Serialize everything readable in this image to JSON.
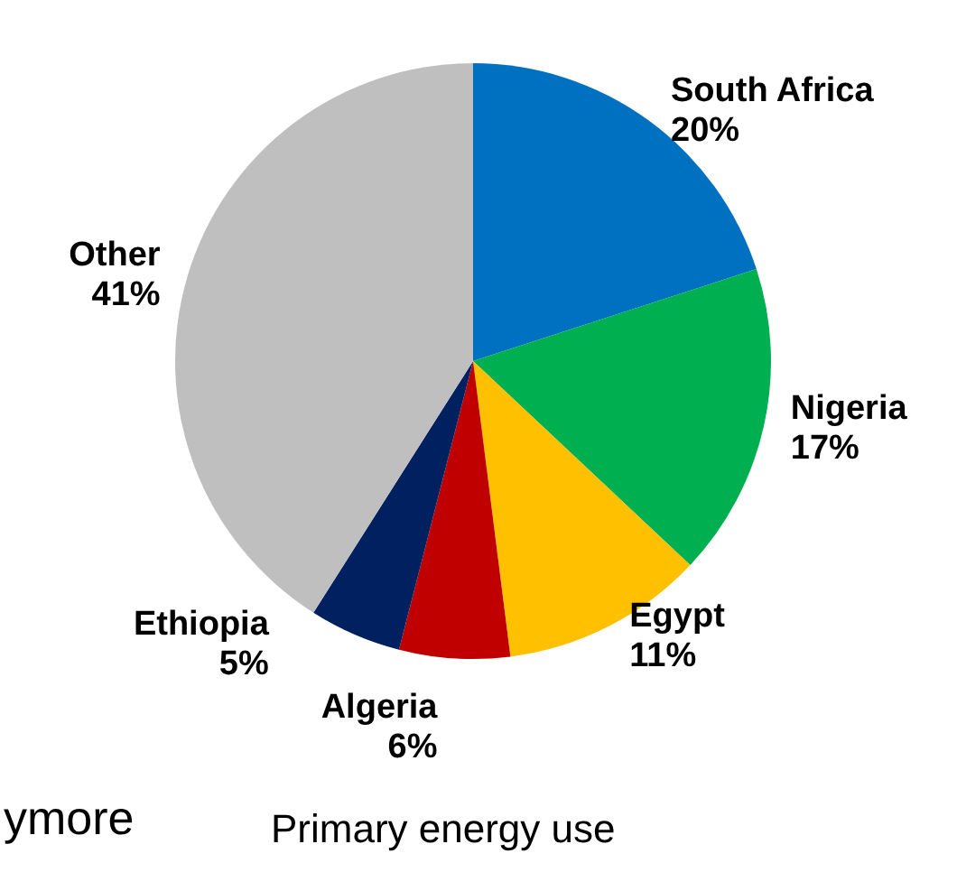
{
  "chart_data": {
    "type": "pie",
    "categories": [
      "South Africa",
      "Nigeria",
      "Egypt",
      "Algeria",
      "Ethiopia",
      "Other"
    ],
    "values": [
      20,
      17,
      11,
      6,
      5,
      41
    ],
    "value_labels": [
      "20%",
      "17%",
      "11%",
      "6%",
      "5%",
      "41%"
    ],
    "colors": [
      "#0070c0",
      "#00b050",
      "#ffc000",
      "#c00000",
      "#002060",
      "#bfbfbf"
    ],
    "annotations": [
      "ymore",
      "Primary energy use"
    ],
    "legend": false
  }
}
